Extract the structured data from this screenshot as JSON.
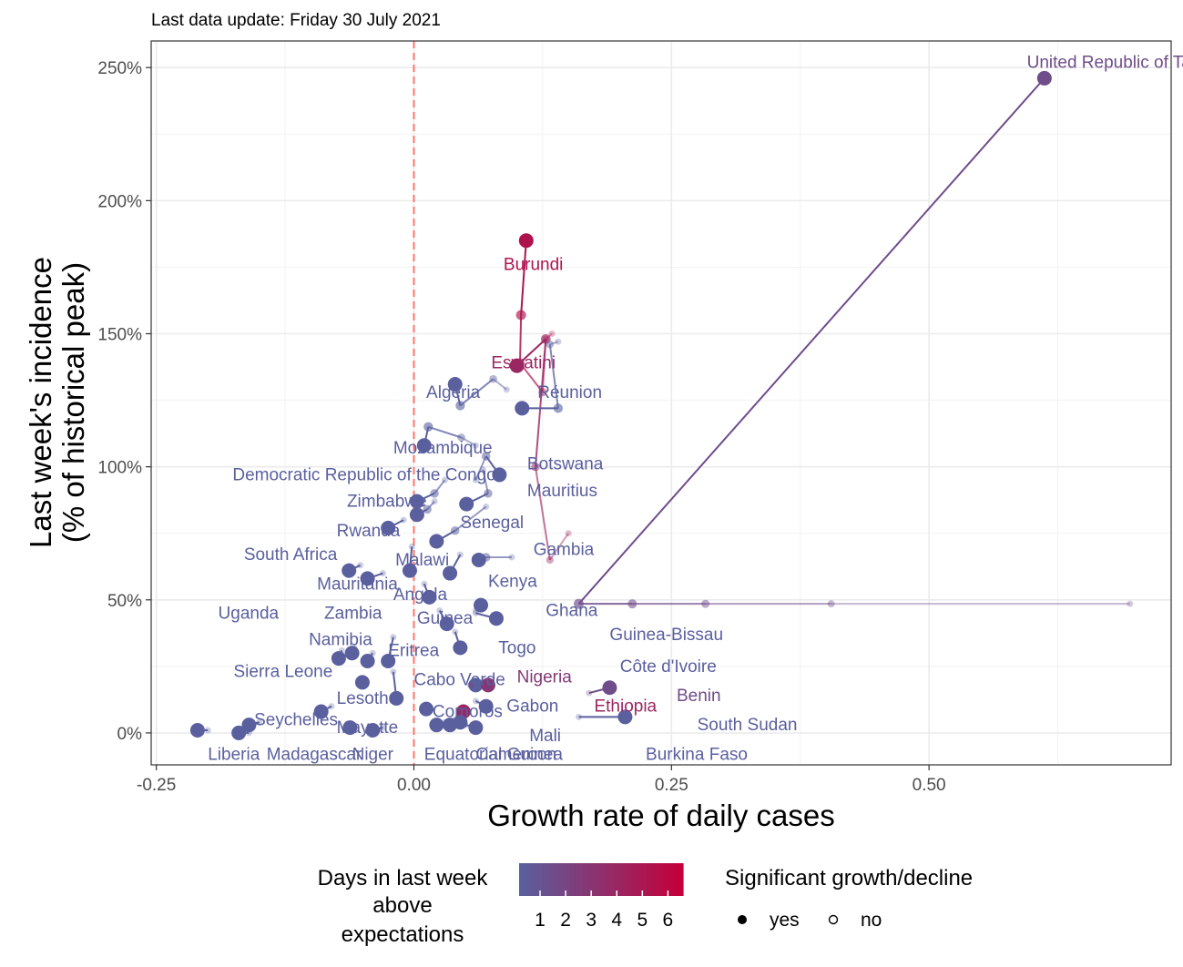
{
  "subtitle": "Last data update: Friday 30 July 2021",
  "chart_data": {
    "type": "scatter",
    "xlabel": "Growth rate of daily cases",
    "ylabel_lines": [
      "Last week's incidence",
      "(% of historical peak)"
    ],
    "xlim": [
      -0.255,
      0.735
    ],
    "ylim": [
      -12,
      260
    ],
    "x_ticks": [
      {
        "value": -0.25,
        "label": "-0.25"
      },
      {
        "value": 0.0,
        "label": "0.00"
      },
      {
        "value": 0.25,
        "label": "0.25"
      },
      {
        "value": 0.5,
        "label": "0.50"
      }
    ],
    "y_ticks": [
      {
        "value": 0,
        "label": "0%"
      },
      {
        "value": 50,
        "label": "50%"
      },
      {
        "value": 100,
        "label": "100%"
      },
      {
        "value": 150,
        "label": "150%"
      },
      {
        "value": 200,
        "label": "200%"
      },
      {
        "value": 250,
        "label": "250%"
      }
    ],
    "reference_line_x": 0,
    "grid": true,
    "colors": {
      "low": "#5a5f9e",
      "mid": "#7d5888",
      "high": "#c4003a",
      "ref_line": "#f8766d"
    },
    "countries": [
      {
        "label": "United Republic of Tanzania",
        "days": 2,
        "sig": true,
        "lx": 0.595,
        "ly": 252,
        "trail": [
          [
            0.695,
            48.5
          ],
          [
            0.405,
            48.5
          ],
          [
            0.283,
            48.5
          ],
          [
            0.212,
            48.5
          ],
          [
            0.16,
            48.5
          ],
          [
            0.612,
            246
          ]
        ]
      },
      {
        "label": "Burundi",
        "days": 5,
        "sig": true,
        "lx": 0.087,
        "ly": 176,
        "trail": [
          [
            0.134,
            150
          ],
          [
            0.128,
            148
          ],
          [
            0.125,
            128
          ],
          [
            0.103,
            139
          ],
          [
            0.104,
            157
          ],
          [
            0.109,
            185
          ]
        ]
      },
      {
        "label": "Eswatini",
        "days": 4,
        "sig": true,
        "lx": 0.075,
        "ly": 139,
        "trail": [
          [
            0.15,
            75
          ],
          [
            0.132,
            65
          ],
          [
            0.118,
            100
          ],
          [
            0.128,
            148
          ],
          [
            0.1,
            138
          ]
        ]
      },
      {
        "label": "Réunion",
        "days": 1,
        "sig": true,
        "lx": 0.12,
        "ly": 128,
        "trail": [
          [
            0.14,
            147
          ],
          [
            0.132,
            146
          ],
          [
            0.14,
            122
          ],
          [
            0.105,
            122
          ]
        ]
      },
      {
        "label": "Algeria",
        "days": 1,
        "sig": true,
        "lx": 0.012,
        "ly": 128,
        "trail": [
          [
            0.09,
            129
          ],
          [
            0.077,
            133
          ],
          [
            0.045,
            123
          ],
          [
            0.04,
            131
          ]
        ]
      },
      {
        "label": "Mozambique",
        "days": 1,
        "sig": true,
        "lx": -0.02,
        "ly": 107,
        "trail": [
          [
            0.06,
            108
          ],
          [
            0.046,
            111
          ],
          [
            0.014,
            115
          ],
          [
            0.01,
            108
          ]
        ]
      },
      {
        "label": "Botswana",
        "days": 1,
        "sig": true,
        "lx": 0.11,
        "ly": 101,
        "trail": [
          [
            0.06,
            95
          ],
          [
            0.07,
            104
          ],
          [
            0.083,
            97
          ]
        ]
      },
      {
        "label": "Democratic Republic of the Congo",
        "days": 1,
        "sig": true,
        "lx": -0.176,
        "ly": 97,
        "trail": [
          [
            0.03,
            95
          ],
          [
            0.02,
            90
          ],
          [
            0.003,
            87
          ]
        ]
      },
      {
        "label": "Mauritius",
        "days": 1,
        "sig": true,
        "lx": 0.11,
        "ly": 91,
        "trail": [
          [
            0.067,
            99
          ],
          [
            0.072,
            90
          ],
          [
            0.051,
            86
          ]
        ]
      },
      {
        "label": "Zimbabwe",
        "days": 1,
        "sig": true,
        "lx": -0.065,
        "ly": 87,
        "trail": [
          [
            0.02,
            87
          ],
          [
            0.013,
            84
          ],
          [
            0.003,
            82
          ]
        ]
      },
      {
        "label": "Rwanda",
        "days": 1,
        "sig": true,
        "lx": -0.075,
        "ly": 76,
        "trail": [
          [
            -0.01,
            80
          ],
          [
            -0.025,
            77
          ]
        ]
      },
      {
        "label": "Senegal",
        "days": 1,
        "sig": true,
        "lx": 0.045,
        "ly": 79,
        "trail": [
          [
            0.07,
            85
          ],
          [
            0.04,
            76
          ],
          [
            0.022,
            72
          ]
        ]
      },
      {
        "label": "Gambia",
        "days": 1,
        "sig": true,
        "lx": 0.116,
        "ly": 69,
        "trail": [
          [
            0.095,
            66
          ],
          [
            0.07,
            66
          ],
          [
            0.063,
            65
          ]
        ]
      },
      {
        "label": "South Africa",
        "days": 1,
        "sig": true,
        "lx": -0.165,
        "ly": 67,
        "trail": [
          [
            -0.052,
            63
          ],
          [
            -0.063,
            61
          ]
        ]
      },
      {
        "label": "Malawi",
        "days": 1,
        "sig": true,
        "lx": -0.018,
        "ly": 65,
        "trail": [
          [
            -0.002,
            70
          ],
          [
            -0.004,
            61
          ]
        ]
      },
      {
        "label": "Kenya",
        "days": 1,
        "sig": true,
        "lx": 0.072,
        "ly": 57,
        "trail": [
          [
            0.045,
            67
          ],
          [
            0.035,
            60
          ]
        ]
      },
      {
        "label": "Mauritania",
        "days": 1,
        "sig": true,
        "lx": -0.094,
        "ly": 56,
        "trail": [
          [
            -0.03,
            60
          ],
          [
            -0.045,
            58
          ]
        ]
      },
      {
        "label": "Angola",
        "days": 1,
        "sig": true,
        "lx": -0.02,
        "ly": 52,
        "trail": [
          [
            0.01,
            56
          ],
          [
            0.015,
            51
          ]
        ]
      },
      {
        "label": "Ghana",
        "days": 1,
        "sig": true,
        "lx": 0.128,
        "ly": 46,
        "trail": [
          [
            0.06,
            46
          ],
          [
            0.065,
            48
          ]
        ]
      },
      {
        "label": "Guinea",
        "days": 1,
        "sig": true,
        "lx": 0.003,
        "ly": 43,
        "trail": [
          [
            0.025,
            46
          ],
          [
            0.032,
            41
          ]
        ]
      },
      {
        "label": "Uganda",
        "days": 1,
        "sig": true,
        "lx": -0.19,
        "ly": 45,
        "trail": [
          [
            -0.058,
            32
          ],
          [
            -0.06,
            30
          ]
        ]
      },
      {
        "label": "Zambia",
        "days": 1,
        "sig": true,
        "lx": -0.087,
        "ly": 45,
        "trail": [
          [
            -0.04,
            30
          ],
          [
            -0.045,
            27
          ]
        ]
      },
      {
        "label": "Guinea-Bissau",
        "days": 1,
        "sig": true,
        "lx": 0.19,
        "ly": 37,
        "trail": [
          [
            0.06,
            45
          ],
          [
            0.08,
            43
          ]
        ]
      },
      {
        "label": "Namibia",
        "days": 1,
        "sig": true,
        "lx": -0.102,
        "ly": 35,
        "trail": [
          [
            -0.07,
            31
          ],
          [
            -0.073,
            28
          ]
        ]
      },
      {
        "label": "Togo",
        "days": 1,
        "sig": true,
        "lx": 0.082,
        "ly": 32,
        "trail": [
          [
            0.04,
            38
          ],
          [
            0.045,
            32
          ]
        ]
      },
      {
        "label": "Eritrea",
        "days": 1,
        "sig": true,
        "lx": -0.025,
        "ly": 31,
        "trail": [
          [
            -0.02,
            36
          ],
          [
            -0.025,
            27
          ]
        ]
      },
      {
        "label": "Côte d'Ivoire",
        "days": 1,
        "sig": true,
        "lx": 0.2,
        "ly": 25,
        "trail": [
          [
            0.055,
            18
          ],
          [
            0.06,
            18
          ]
        ]
      },
      {
        "label": "Sierra Leone",
        "days": 1,
        "sig": true,
        "lx": -0.175,
        "ly": 23,
        "trail": [
          [
            -0.05,
            20
          ],
          [
            -0.05,
            19
          ]
        ]
      },
      {
        "label": "Cabo Verde",
        "days": 1,
        "sig": true,
        "lx": 0.0,
        "ly": 20,
        "trail": [
          [
            -0.02,
            23
          ],
          [
            -0.017,
            13
          ]
        ]
      },
      {
        "label": "Nigeria",
        "days": 3,
        "sig": true,
        "lx": 0.1,
        "ly": 21,
        "trail": [
          [
            0.055,
            18
          ],
          [
            0.072,
            18
          ]
        ]
      },
      {
        "label": "Benin",
        "days": 2,
        "sig": true,
        "lx": 0.255,
        "ly": 14,
        "trail": [
          [
            0.17,
            15
          ],
          [
            0.19,
            17
          ]
        ]
      },
      {
        "label": "Lesotho",
        "days": 1,
        "sig": true,
        "lx": -0.075,
        "ly": 13,
        "trail": [
          [
            -0.08,
            10
          ],
          [
            -0.09,
            8
          ]
        ]
      },
      {
        "label": "Gabon",
        "days": 1,
        "sig": true,
        "lx": 0.09,
        "ly": 10,
        "trail": [
          [
            0.06,
            12
          ],
          [
            0.07,
            10
          ]
        ]
      },
      {
        "label": "Ethiopia",
        "days": 4,
        "sig": true,
        "lx": 0.175,
        "ly": 10,
        "trail": [
          [
            0.045,
            8
          ],
          [
            0.048,
            8
          ]
        ]
      },
      {
        "label": "Seychelles",
        "days": 1,
        "sig": true,
        "lx": -0.155,
        "ly": 5,
        "trail": [
          [
            -0.15,
            4
          ],
          [
            -0.16,
            3
          ]
        ]
      },
      {
        "label": "Mayotte",
        "days": 1,
        "sig": true,
        "lx": -0.075,
        "ly": 2,
        "trail": [
          [
            -0.06,
            2
          ],
          [
            -0.062,
            2
          ]
        ]
      },
      {
        "label": "South Sudan",
        "days": 1,
        "sig": true,
        "lx": 0.275,
        "ly": 3,
        "trail": [
          [
            0.16,
            6
          ],
          [
            0.205,
            6
          ]
        ]
      },
      {
        "label": "Mali",
        "days": 1,
        "sig": true,
        "lx": 0.112,
        "ly": -1,
        "trail": [
          [
            0.05,
            3
          ],
          [
            0.06,
            2
          ]
        ]
      },
      {
        "label": "Liberia",
        "days": 1,
        "sig": true,
        "lx": -0.2,
        "ly": -8,
        "trail": [
          [
            -0.2,
            1
          ],
          [
            -0.21,
            1
          ]
        ]
      },
      {
        "label": "Madagascar",
        "days": 1,
        "sig": true,
        "lx": -0.143,
        "ly": -8,
        "trail": [
          [
            -0.16,
            0
          ],
          [
            -0.17,
            0
          ]
        ]
      },
      {
        "label": "Niger",
        "days": 1,
        "sig": true,
        "lx": -0.06,
        "ly": -8,
        "trail": [
          [
            -0.03,
            2
          ],
          [
            -0.04,
            1
          ]
        ]
      },
      {
        "label": "Equatorial Guinea",
        "days": 1,
        "sig": true,
        "lx": 0.01,
        "ly": -8,
        "trail": [
          [
            0.02,
            3
          ],
          [
            0.022,
            3
          ]
        ]
      },
      {
        "label": "Cameroon",
        "days": 1,
        "sig": true,
        "lx": 0.06,
        "ly": -8,
        "trail": [
          [
            0.03,
            4
          ],
          [
            0.035,
            3
          ]
        ]
      },
      {
        "label": "Burkina Faso",
        "days": 1,
        "sig": true,
        "lx": 0.225,
        "ly": -8,
        "trail": [
          [
            0.04,
            5
          ],
          [
            0.045,
            4
          ]
        ]
      },
      {
        "label": "Comoros",
        "days": 1,
        "sig": true,
        "lx": 0.018,
        "ly": 8,
        "trail": [
          [
            0.01,
            10
          ],
          [
            0.012,
            9
          ]
        ]
      }
    ],
    "legend": {
      "color_title_lines": [
        "Days in last week",
        "above",
        "expectations"
      ],
      "color_values": [
        "1",
        "2",
        "3",
        "4",
        "5",
        "6"
      ],
      "shape_title": "Significant growth/decline",
      "shape_items": [
        {
          "label": "yes",
          "filled": true
        },
        {
          "label": "no",
          "filled": false
        }
      ]
    }
  }
}
